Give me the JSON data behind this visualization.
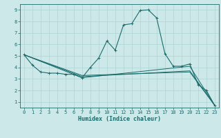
{
  "title": "",
  "xlabel": "Humidex (Indice chaleur)",
  "ylabel": "",
  "background_color": "#cce8e8",
  "line_color": "#1a6b6b",
  "xlim": [
    -0.5,
    23.5
  ],
  "ylim": [
    0.5,
    9.5
  ],
  "grid_color": "#aad4d4",
  "lines": [
    {
      "x": [
        0,
        1,
        2,
        3,
        4,
        5,
        6,
        7,
        8,
        9,
        10,
        11,
        12,
        13,
        14,
        15,
        16,
        17,
        18,
        19,
        20,
        21,
        22,
        23
      ],
      "y": [
        5.1,
        4.2,
        3.6,
        3.5,
        3.5,
        3.4,
        3.4,
        3.1,
        4.0,
        4.8,
        6.3,
        5.5,
        7.7,
        7.8,
        8.95,
        9.0,
        8.3,
        5.2,
        4.1,
        4.1,
        4.3,
        2.5,
        2.0,
        0.7
      ],
      "marker": "+"
    },
    {
      "x": [
        0,
        7,
        20,
        23
      ],
      "y": [
        5.1,
        3.1,
        4.1,
        0.7
      ],
      "marker": null
    },
    {
      "x": [
        0,
        7,
        20,
        23
      ],
      "y": [
        5.1,
        3.2,
        3.7,
        0.7
      ],
      "marker": null
    },
    {
      "x": [
        0,
        7,
        20,
        23
      ],
      "y": [
        5.1,
        3.3,
        3.6,
        0.7
      ],
      "marker": null
    }
  ],
  "xticks": [
    0,
    1,
    2,
    3,
    4,
    5,
    6,
    7,
    8,
    9,
    10,
    11,
    12,
    13,
    14,
    15,
    16,
    17,
    18,
    19,
    20,
    21,
    22,
    23
  ],
  "yticks": [
    1,
    2,
    3,
    4,
    5,
    6,
    7,
    8,
    9
  ],
  "tick_fontsize": 5.0,
  "xlabel_fontsize": 6.0
}
